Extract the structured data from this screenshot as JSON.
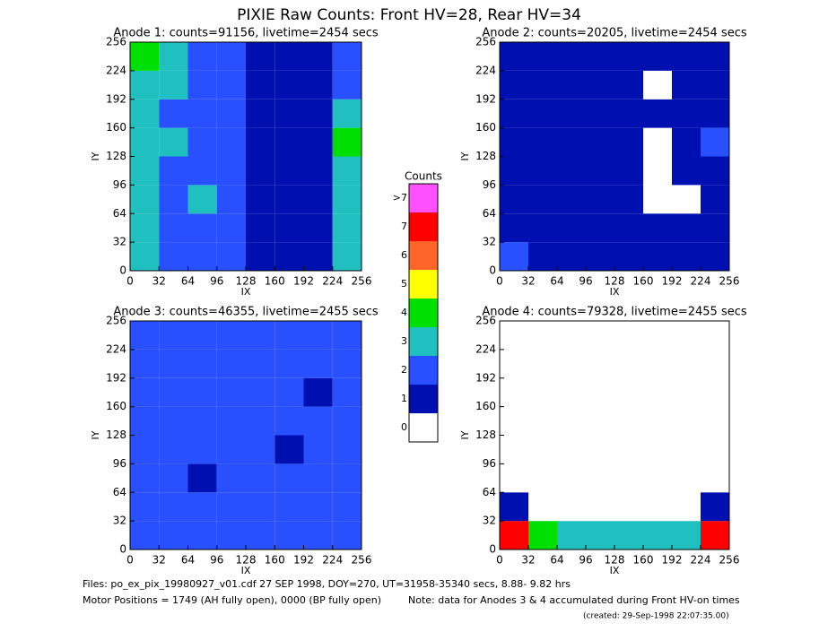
{
  "title": "PIXIE Raw Counts:  Front HV=28, Rear HV=34",
  "chart_data": [
    {
      "type": "heatmap",
      "title": "Anode 1: counts=91156, livetime=2454 secs",
      "x_label": "IX",
      "y_label": "IY",
      "xlim": [
        0,
        256
      ],
      "ylim": [
        0,
        256
      ],
      "xticks": [
        0,
        32,
        64,
        96,
        128,
        160,
        192,
        224,
        256
      ],
      "yticks": [
        0,
        32,
        64,
        96,
        128,
        160,
        192,
        224,
        256
      ],
      "z": [
        [
          3,
          2,
          2,
          2,
          1,
          1,
          1,
          3
        ],
        [
          3,
          2,
          2,
          2,
          1,
          1,
          1,
          3
        ],
        [
          3,
          2,
          3,
          2,
          1,
          1,
          1,
          3
        ],
        [
          3,
          2,
          2,
          2,
          1,
          1,
          1,
          3
        ],
        [
          3,
          3,
          2,
          2,
          1,
          1,
          1,
          4
        ],
        [
          3,
          2,
          2,
          2,
          1,
          1,
          1,
          3
        ],
        [
          3,
          3,
          2,
          2,
          1,
          1,
          1,
          2
        ],
        [
          4,
          3,
          2,
          2,
          1,
          1,
          1,
          2
        ]
      ]
    },
    {
      "type": "heatmap",
      "title": "Anode 2: counts=20205, livetime=2454 secs",
      "x_label": "IX",
      "y_label": "IY",
      "xlim": [
        0,
        256
      ],
      "ylim": [
        0,
        256
      ],
      "xticks": [
        0,
        32,
        64,
        96,
        128,
        160,
        192,
        224,
        256
      ],
      "yticks": [
        0,
        32,
        64,
        96,
        128,
        160,
        192,
        224,
        256
      ],
      "z": [
        [
          2,
          1,
          1,
          1,
          1,
          1,
          1,
          1
        ],
        [
          1,
          1,
          1,
          1,
          1,
          1,
          1,
          1
        ],
        [
          1,
          1,
          1,
          1,
          1,
          0,
          0,
          1
        ],
        [
          1,
          1,
          1,
          1,
          1,
          0,
          1,
          1
        ],
        [
          1,
          1,
          1,
          1,
          1,
          0,
          1,
          2
        ],
        [
          1,
          1,
          1,
          1,
          1,
          1,
          1,
          1
        ],
        [
          1,
          1,
          1,
          1,
          1,
          0,
          1,
          1
        ],
        [
          1,
          1,
          1,
          1,
          1,
          1,
          1,
          1
        ]
      ]
    },
    {
      "type": "heatmap",
      "title": "Anode 3: counts=46355, livetime=2455 secs",
      "x_label": "IX",
      "y_label": "IY",
      "xlim": [
        0,
        256
      ],
      "ylim": [
        0,
        256
      ],
      "xticks": [
        0,
        32,
        64,
        96,
        128,
        160,
        192,
        224,
        256
      ],
      "yticks": [
        0,
        32,
        64,
        96,
        128,
        160,
        192,
        224,
        256
      ],
      "z": [
        [
          2,
          2,
          2,
          2,
          2,
          2,
          2,
          2
        ],
        [
          2,
          2,
          2,
          2,
          2,
          2,
          2,
          2
        ],
        [
          2,
          2,
          1,
          2,
          2,
          2,
          2,
          2
        ],
        [
          2,
          2,
          2,
          2,
          2,
          1,
          2,
          2
        ],
        [
          2,
          2,
          2,
          2,
          2,
          2,
          2,
          2
        ],
        [
          2,
          2,
          2,
          2,
          2,
          2,
          1,
          2
        ],
        [
          2,
          2,
          2,
          2,
          2,
          2,
          2,
          2
        ],
        [
          2,
          2,
          2,
          2,
          2,
          2,
          2,
          2
        ]
      ]
    },
    {
      "type": "heatmap",
      "title": "Anode 4: counts=79328, livetime=2455 secs",
      "x_label": "IX",
      "y_label": "IY",
      "xlim": [
        0,
        256
      ],
      "ylim": [
        0,
        256
      ],
      "xticks": [
        0,
        32,
        64,
        96,
        128,
        160,
        192,
        224,
        256
      ],
      "yticks": [
        0,
        32,
        64,
        96,
        128,
        160,
        192,
        224,
        256
      ],
      "z": [
        [
          7,
          4,
          3,
          3,
          3,
          3,
          3,
          7
        ],
        [
          1,
          0,
          0,
          0,
          0,
          0,
          0,
          1
        ],
        [
          0,
          0,
          0,
          0,
          0,
          0,
          0,
          0
        ],
        [
          0,
          0,
          0,
          0,
          0,
          0,
          0,
          0
        ],
        [
          0,
          0,
          0,
          0,
          0,
          0,
          0,
          0
        ],
        [
          0,
          0,
          0,
          0,
          0,
          0,
          0,
          0
        ],
        [
          0,
          0,
          0,
          0,
          0,
          0,
          0,
          0
        ],
        [
          0,
          0,
          0,
          0,
          0,
          0,
          0,
          0
        ]
      ]
    },
    {
      "type": "colorbar",
      "title": "Counts",
      "categories": [
        "0",
        "1",
        "2",
        "3",
        "4",
        "5",
        "6",
        "7",
        ">7"
      ],
      "colors": [
        "#ffffff",
        "#0010b0",
        "#2850ff",
        "#20c0c0",
        "#00e000",
        "#ffff00",
        "#ff6428",
        "#ff0000",
        "#ff50ff"
      ]
    }
  ],
  "footer": {
    "files": "Files: po_ex_pix_19980927_v01.cdf    27 SEP 1998, DOY=270, UT=31958-35340 secs,  8.88- 9.82 hrs",
    "motor": "Motor Positions = 1749 (AH fully open), 0000 (BP fully open)",
    "note": "Note: data for Anodes 3 & 4 accumulated during Front HV-on times",
    "created": "(created: 29-Sep-1998 22:07:35.00)"
  }
}
